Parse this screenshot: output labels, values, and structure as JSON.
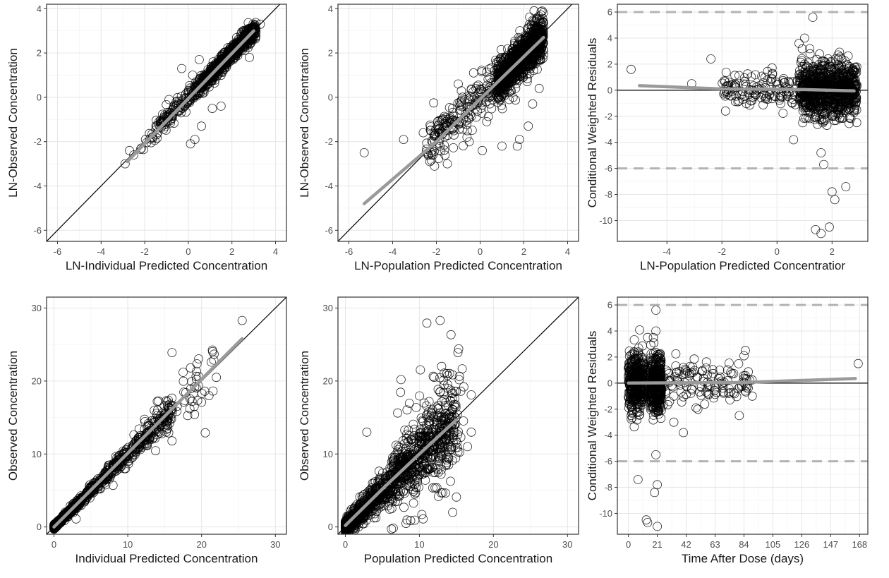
{
  "chart_data": [
    {
      "id": "p1",
      "type": "scatter",
      "xlabel": "LN-Individual Predicted Concentration",
      "ylabel": "LN-Observed Concentration",
      "xlim": [
        -6.5,
        4.5
      ],
      "ylim": [
        -6.5,
        4.2
      ],
      "xticks": [
        -6,
        -4,
        -2,
        0,
        2,
        4
      ],
      "yticks": [
        -6,
        -4,
        -2,
        0,
        2,
        4
      ],
      "tick_labels_x": [
        "-6",
        "-4",
        "-2",
        "0",
        "2",
        "4"
      ],
      "tick_labels_y": [
        "-6",
        "-4",
        "-2",
        "0",
        "2",
        "4"
      ],
      "reference_lines": [
        {
          "kind": "identity"
        }
      ],
      "trend": [
        [
          -2.8,
          -2.9
        ],
        [
          3.0,
          3.0
        ]
      ],
      "points": {
        "seed": 11,
        "listed": [
          [
            -2.9,
            -3.0
          ],
          [
            -2.7,
            -2.4
          ],
          [
            -2.5,
            -2.6
          ],
          [
            0.1,
            -2.1
          ],
          [
            0.3,
            -1.9
          ],
          [
            0.6,
            -1.3
          ],
          [
            1.1,
            -0.5
          ],
          [
            1.5,
            -0.4
          ],
          [
            0.2,
            1.0
          ],
          [
            0.5,
            1.7
          ],
          [
            -0.3,
            1.3
          ],
          [
            2.8,
            1.8
          ],
          [
            3.3,
            3.3
          ],
          [
            2.9,
            2.6
          ]
        ],
        "clusters": [
          {
            "n": 620,
            "x": [
              -2.3,
              3.1
            ],
            "x_dist": "tail_low",
            "y_line": [
              0.0,
              1.0
            ],
            "y_sd": 0.22
          },
          {
            "n": 260,
            "x": [
              0.6,
              2.9
            ],
            "x_dist": "uniform",
            "y_line": [
              0.0,
              1.0
            ],
            "y_sd": 0.15
          }
        ]
      }
    },
    {
      "id": "p2",
      "type": "scatter",
      "xlabel": "LN-Population Predicted Concentration",
      "ylabel": "LN-Observed Concentration",
      "xlim": [
        -6.5,
        4.5
      ],
      "ylim": [
        -6.5,
        4.2
      ],
      "xticks": [
        -6,
        -4,
        -2,
        0,
        2,
        4
      ],
      "yticks": [
        -6,
        -4,
        -2,
        0,
        2,
        4
      ],
      "tick_labels_x": [
        "-6",
        "-4",
        "-2",
        "0",
        "2",
        "4"
      ],
      "tick_labels_y": [
        "-6",
        "-4",
        "-2",
        "0",
        "2",
        "4"
      ],
      "reference_lines": [
        {
          "kind": "identity"
        }
      ],
      "trend": [
        [
          -5.3,
          -4.8
        ],
        [
          -2.0,
          -2.0
        ],
        [
          0.5,
          0.4
        ],
        [
          2.9,
          2.7
        ]
      ],
      "points": {
        "seed": 23,
        "listed": [
          [
            -5.3,
            -2.5
          ],
          [
            -3.5,
            -1.9
          ],
          [
            -2.6,
            -1.6
          ],
          [
            -2.3,
            -2.9
          ],
          [
            -1.5,
            -3.0
          ],
          [
            -0.6,
            -1.8
          ],
          [
            0.1,
            -2.4
          ],
          [
            0.3,
            -1.1
          ],
          [
            1.0,
            -2.2
          ],
          [
            1.7,
            -2.2
          ],
          [
            1.8,
            -1.9
          ],
          [
            2.2,
            -1.3
          ],
          [
            2.4,
            -0.3
          ],
          [
            2.7,
            0.4
          ],
          [
            2.6,
            3.2
          ],
          [
            -1.0,
            0.6
          ],
          [
            -0.3,
            1.1
          ]
        ],
        "clusters": [
          {
            "n": 1100,
            "x": [
              0.8,
              2.9
            ],
            "x_dist": "uniform",
            "y_line": [
              -0.1,
              1.0
            ],
            "y_sd": 0.45
          },
          {
            "n": 200,
            "x": [
              -2.5,
              0.8
            ],
            "x_dist": "uniform",
            "y_line": [
              0.0,
              0.9
            ],
            "y_sd": 0.55
          }
        ]
      }
    },
    {
      "id": "p3",
      "type": "scatter",
      "xlabel": "LN-Population Predicted Concentratior",
      "ylabel": "Conditional Weighted Residuals",
      "xlim": [
        -5.8,
        3.3
      ],
      "ylim": [
        -11.6,
        6.6
      ],
      "xticks": [
        -4,
        -2,
        0,
        2
      ],
      "yticks": [
        -10,
        -8,
        -6,
        -4,
        -2,
        0,
        2,
        4,
        6
      ],
      "tick_labels_x": [
        "-4",
        "-2",
        "0",
        "2"
      ],
      "tick_labels_y": [
        "-10",
        "-8",
        "-6",
        "-4",
        "-2",
        "0",
        "2",
        "4",
        "6"
      ],
      "reference_lines": [
        {
          "kind": "zero"
        },
        {
          "kind": "dashed",
          "y": 6
        },
        {
          "kind": "dashed",
          "y": -6
        }
      ],
      "trend": [
        [
          -5.0,
          0.35
        ],
        [
          -2.0,
          0.1
        ],
        [
          1.0,
          0.05
        ],
        [
          2.8,
          -0.05
        ]
      ],
      "points": {
        "seed": 37,
        "listed": [
          [
            -5.3,
            1.6
          ],
          [
            -3.1,
            0.5
          ],
          [
            -2.4,
            2.4
          ],
          [
            -1.8,
            0.3
          ],
          [
            -0.4,
            -0.6
          ],
          [
            0.8,
            3.6
          ],
          [
            1.0,
            4.0
          ],
          [
            1.3,
            5.6
          ],
          [
            1.0,
            2.0
          ],
          [
            1.6,
            -4.8
          ],
          [
            1.7,
            -5.7
          ],
          [
            1.4,
            -10.7
          ],
          [
            1.6,
            -11.0
          ],
          [
            1.9,
            -10.5
          ],
          [
            2.0,
            -7.8
          ],
          [
            2.1,
            -8.4
          ],
          [
            2.5,
            -7.4
          ],
          [
            0.6,
            -3.8
          ],
          [
            1.2,
            2.8
          ]
        ],
        "clusters": [
          {
            "n": 900,
            "x": [
              0.8,
              2.9
            ],
            "x_dist": "uniform",
            "y_line": [
              0.0,
              0.0
            ],
            "y_sd": 1.05
          },
          {
            "n": 130,
            "x": [
              -2.0,
              0.8
            ],
            "x_dist": "uniform",
            "y_line": [
              0.0,
              0.0
            ],
            "y_sd": 0.6
          }
        ]
      }
    },
    {
      "id": "p4",
      "type": "scatter",
      "xlabel": "Individual Predicted Concentration",
      "ylabel": "Observed Concentration",
      "xlim": [
        -1,
        31.5
      ],
      "ylim": [
        -1,
        31.5
      ],
      "xticks": [
        0,
        10,
        20,
        30
      ],
      "yticks": [
        0,
        10,
        20,
        30
      ],
      "tick_labels_x": [
        "0",
        "10",
        "20",
        "30"
      ],
      "tick_labels_y": [
        "0",
        "10",
        "20",
        "30"
      ],
      "reference_lines": [
        {
          "kind": "identity"
        }
      ],
      "trend": [
        [
          0.0,
          0.0
        ],
        [
          25.5,
          25.8
        ]
      ],
      "points": {
        "seed": 53,
        "listed": [
          [
            25.5,
            28.3
          ],
          [
            16.0,
            23.9
          ],
          [
            20.5,
            12.9
          ],
          [
            17.5,
            21.2
          ],
          [
            18.5,
            21.8
          ],
          [
            20.0,
            17.1
          ],
          [
            19.0,
            16.5
          ],
          [
            16.0,
            11.8
          ],
          [
            3.0,
            1.1
          ],
          [
            8.0,
            5.7
          ],
          [
            22.0,
            20.5
          ],
          [
            21.0,
            18.0
          ],
          [
            14.0,
            17.2
          ]
        ],
        "clusters": [
          {
            "n": 750,
            "x": [
              0.0,
              16.0
            ],
            "x_dist": "decay",
            "y_line": [
              0.0,
              1.0
            ],
            "y_sd": 0.9
          },
          {
            "n": 70,
            "x": [
              12.0,
              22.0
            ],
            "x_dist": "uniform",
            "y_line": [
              0.0,
              1.0
            ],
            "y_sd": 1.5
          }
        ]
      }
    },
    {
      "id": "p5",
      "type": "scatter",
      "xlabel": "Population Predicted Concentration",
      "ylabel": "Observed Concentration",
      "xlim": [
        -1,
        31.5
      ],
      "ylim": [
        -1,
        31.5
      ],
      "xticks": [
        0,
        10,
        20,
        30
      ],
      "yticks": [
        0,
        10,
        20,
        30
      ],
      "tick_labels_x": [
        "0",
        "10",
        "20",
        "30"
      ],
      "tick_labels_y": [
        "0",
        "10",
        "20",
        "30"
      ],
      "reference_lines": [
        {
          "kind": "identity"
        }
      ],
      "trend": [
        [
          0.0,
          0.2
        ],
        [
          5.0,
          5.2
        ],
        [
          10.0,
          10.0
        ],
        [
          15.0,
          14.7
        ]
      ],
      "points": {
        "seed": 71,
        "listed": [
          [
            12.8,
            28.3
          ],
          [
            15.2,
            23.9
          ],
          [
            16.0,
            19.2
          ],
          [
            17.0,
            18.1
          ],
          [
            14.5,
            2.0
          ],
          [
            15.0,
            4.1
          ],
          [
            10.5,
            1.1
          ],
          [
            2.9,
            13.0
          ],
          [
            13.0,
            22.0
          ],
          [
            12.0,
            20.5
          ],
          [
            17.0,
            13.0
          ],
          [
            16.5,
            11.0
          ]
        ],
        "clusters": [
          {
            "n": 1200,
            "x": [
              0.0,
              15.0
            ],
            "x_dist": "decay",
            "y_line": [
              0.0,
              1.0
            ],
            "y_sd": 2.8
          },
          {
            "n": 200,
            "x": [
              6.0,
              16.0
            ],
            "x_dist": "uniform",
            "y_line": [
              0.0,
              1.0
            ],
            "y_sd": 4.5
          }
        ]
      }
    },
    {
      "id": "p6",
      "type": "scatter",
      "xlabel": "Time After Dose (days)",
      "ylabel": "Conditional Weighted Residuals",
      "xlim": [
        -8,
        174
      ],
      "ylim": [
        -11.6,
        6.6
      ],
      "xticks": [
        0,
        21,
        42,
        63,
        84,
        105,
        126,
        147,
        168
      ],
      "yticks": [
        -10,
        -8,
        -6,
        -4,
        -2,
        0,
        2,
        4,
        6
      ],
      "tick_labels_x": [
        "0",
        "21",
        "42",
        "63",
        "84",
        "105",
        "126",
        "147",
        "168"
      ],
      "tick_labels_y": [
        "-10",
        "-8",
        "-6",
        "-4",
        "-2",
        "0",
        "2",
        "4",
        "6"
      ],
      "reference_lines": [
        {
          "kind": "zero"
        },
        {
          "kind": "dashed",
          "y": 6
        },
        {
          "kind": "dashed",
          "y": -6
        }
      ],
      "trend": [
        [
          0.0,
          0.0
        ],
        [
          84.0,
          0.05
        ],
        [
          165.0,
          0.35
        ]
      ],
      "points": {
        "seed": 89,
        "listed": [
          [
            167.0,
            1.5
          ],
          [
            20.0,
            5.6
          ],
          [
            20.0,
            4.0
          ],
          [
            14.0,
            3.5
          ],
          [
            7.0,
            -7.4
          ],
          [
            13.0,
            -10.5
          ],
          [
            14.0,
            -10.7
          ],
          [
            21.0,
            -11.0
          ],
          [
            21.0,
            -7.8
          ],
          [
            19.0,
            -8.4
          ],
          [
            40.0,
            -3.8
          ],
          [
            33.0,
            -3.0
          ],
          [
            85.0,
            2.5
          ],
          [
            84.0,
            2.1
          ],
          [
            90.0,
            -1.0
          ],
          [
            20.0,
            -5.5
          ]
        ],
        "clusters": [
          {
            "n": 420,
            "x": [
              0.0,
              11.0
            ],
            "x_dist": "uniform",
            "y_line": [
              0.0,
              0.0
            ],
            "y_sd": 1.1
          },
          {
            "n": 420,
            "x": [
              16.0,
              24.0
            ],
            "x_dist": "uniform",
            "y_line": [
              0.0,
              0.0
            ],
            "y_sd": 1.1
          },
          {
            "n": 130,
            "x": [
              24.0,
              90.0
            ],
            "x_dist": "uniform",
            "y_line": [
              0.0,
              0.0
            ],
            "y_sd": 0.75
          }
        ]
      }
    }
  ]
}
